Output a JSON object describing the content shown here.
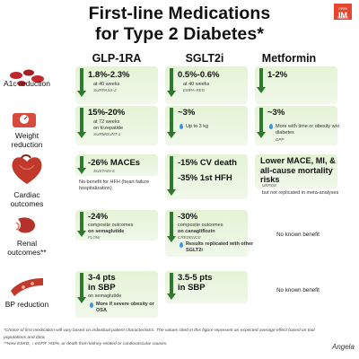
{
  "title_line1": "First-line Medications",
  "title_line2": "for Type 2 Diabetes*",
  "logo": {
    "top": "OPEN PAGES",
    "text": "IM"
  },
  "columns": [
    "GLP-1RA",
    "SGLT2i",
    "Metformin"
  ],
  "rows": [
    {
      "label": "A1c reduction",
      "icon": "blood-drops-icon"
    },
    {
      "label": "Weight reduction",
      "icon": "scale-icon"
    },
    {
      "label": "Cardiac outcomes",
      "icon": "heart-icon"
    },
    {
      "label": "Renal outcomes**",
      "icon": "kidney-icon"
    },
    {
      "label": "BP reduction",
      "icon": "blood-vessel-icon"
    }
  ],
  "a1c": {
    "glp": {
      "value": "1.8%-2.3%",
      "sub": "at 40 weeks",
      "trial": "SURPASS-2"
    },
    "sglt": {
      "value": "0.5%-0.6%",
      "sub": "at 40 weeks",
      "trial": "EMPA-REG"
    },
    "met": {
      "value": "1-2%"
    }
  },
  "weight": {
    "glp": {
      "value": "15%-20%",
      "sub1": "at 72 weeks",
      "sub2": "on tirzepatide",
      "trial": "SURMOUNT-1"
    },
    "sglt": {
      "value": "~3%",
      "drop": "Up to 3 kg"
    },
    "met": {
      "value": "~3%",
      "drop": "More with time or obesity w/o diabetes",
      "trial": "DPP"
    }
  },
  "cardiac": {
    "glp": {
      "value": "-26% MACEs",
      "trial": "SUSTAIN-6",
      "note": "No benefit for HFH (heart failure hospitalization)"
    },
    "sglt": {
      "value1": "-15% CV death",
      "value2": "-35% 1st HFH"
    },
    "met": {
      "value": "Lower MACE, MI, & all-cause mortality risks",
      "trial": "UKPDS",
      "note": "but not replicated in meta-analyses"
    }
  },
  "renal": {
    "glp": {
      "value": "-24%",
      "sub1": "composite outcomes",
      "sub2": "on semaglutide",
      "trial": "FLOW"
    },
    "sglt": {
      "value": "-30%",
      "sub1": "composite outcomes",
      "sub2": "on canagliflozin",
      "trial": "CREDENCE",
      "drop": "Results replicated with other SGLT2i"
    },
    "met": {
      "note": "No known benefit"
    }
  },
  "bp": {
    "glp": {
      "value1": "3-4 pts",
      "value2": "in SBP",
      "sub": "on semaglutide",
      "drop": "More if severe obesity or OSA"
    },
    "sglt": {
      "value1": "3.5-5 pts",
      "value2": "in SBP"
    },
    "met": {
      "note": "No known benefit"
    }
  },
  "footnote1": "*Choice of first medication will vary based on individual patient characteristics. The values cited in this figure represent an expected average effect based on trial populations and data.",
  "footnote2": "**New ESKD, ↓ eGFR >50%, or death from kidney-related or cardiovascular causes.",
  "signature": "Angela",
  "colors": {
    "green": "#2d7a2d",
    "panel": "#e4f3d6",
    "drop": "#3a94d8",
    "logo": "#e8452f"
  }
}
